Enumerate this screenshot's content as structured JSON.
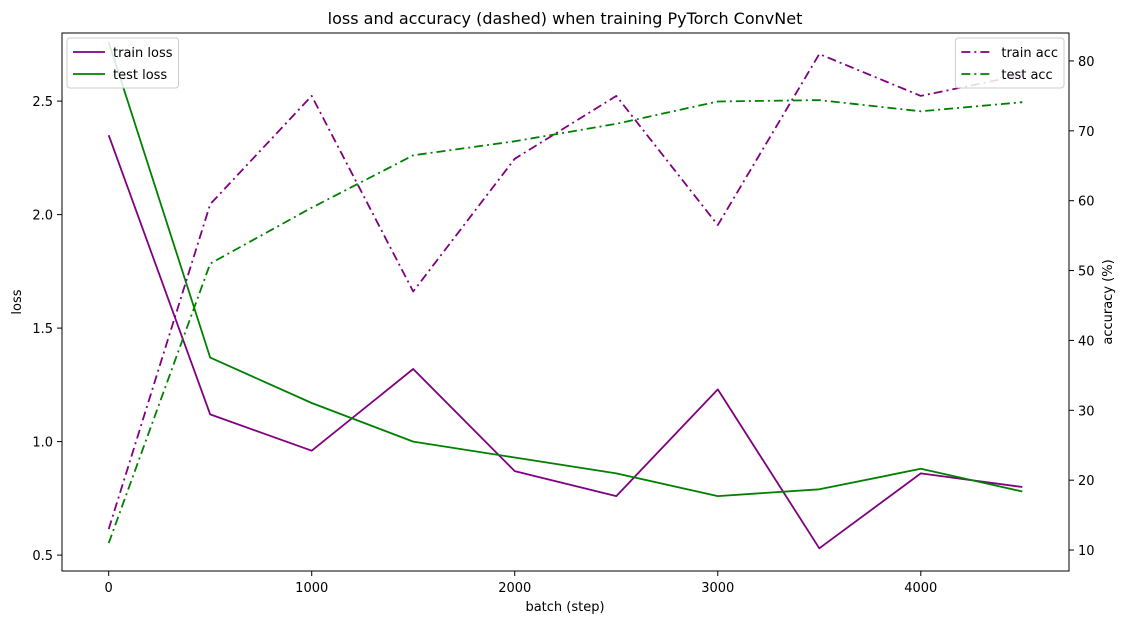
{
  "chart_data": {
    "type": "line",
    "title": "loss and accuracy (dashed) when training PyTorch ConvNet",
    "xlabel": "batch (step)",
    "ylabel": "loss",
    "ylabel_right": "accuracy (%)",
    "x": [
      0,
      500,
      1000,
      1500,
      2000,
      2500,
      3000,
      3500,
      4000,
      4500
    ],
    "xlim": [
      -230,
      4730
    ],
    "ylim": [
      0.43,
      2.8
    ],
    "ylim_right": [
      7,
      84
    ],
    "x_ticks": [
      0,
      1000,
      2000,
      3000,
      4000
    ],
    "y_ticks": [
      0.5,
      1.0,
      1.5,
      2.0,
      2.5
    ],
    "y_ticks_right": [
      10,
      20,
      30,
      40,
      50,
      60,
      70,
      80
    ],
    "grid": false,
    "series": [
      {
        "name": "train loss",
        "axis": "left",
        "style": "solid",
        "color": "#800080",
        "values": [
          2.35,
          1.12,
          0.96,
          1.32,
          0.87,
          0.76,
          1.23,
          0.53,
          0.86,
          0.8
        ]
      },
      {
        "name": "test loss",
        "axis": "left",
        "style": "solid",
        "color": "#008000",
        "values": [
          2.76,
          1.37,
          1.17,
          1.0,
          0.93,
          0.86,
          0.76,
          0.79,
          0.88,
          0.78
        ]
      },
      {
        "name": "train acc",
        "axis": "right",
        "style": "dashdot",
        "color": "#800080",
        "values": [
          13,
          59.5,
          75,
          47,
          66,
          75,
          56.5,
          81,
          75,
          78
        ]
      },
      {
        "name": "test acc",
        "axis": "right",
        "style": "dashdot",
        "color": "#008000",
        "values": [
          11,
          51,
          59,
          66.5,
          68.5,
          71,
          74.2,
          74.4,
          72.8,
          74.1
        ]
      }
    ],
    "legends": [
      {
        "placement": "top-left",
        "series": [
          "train loss",
          "test loss"
        ]
      },
      {
        "placement": "top-right",
        "series": [
          "train acc",
          "test acc"
        ]
      }
    ]
  }
}
